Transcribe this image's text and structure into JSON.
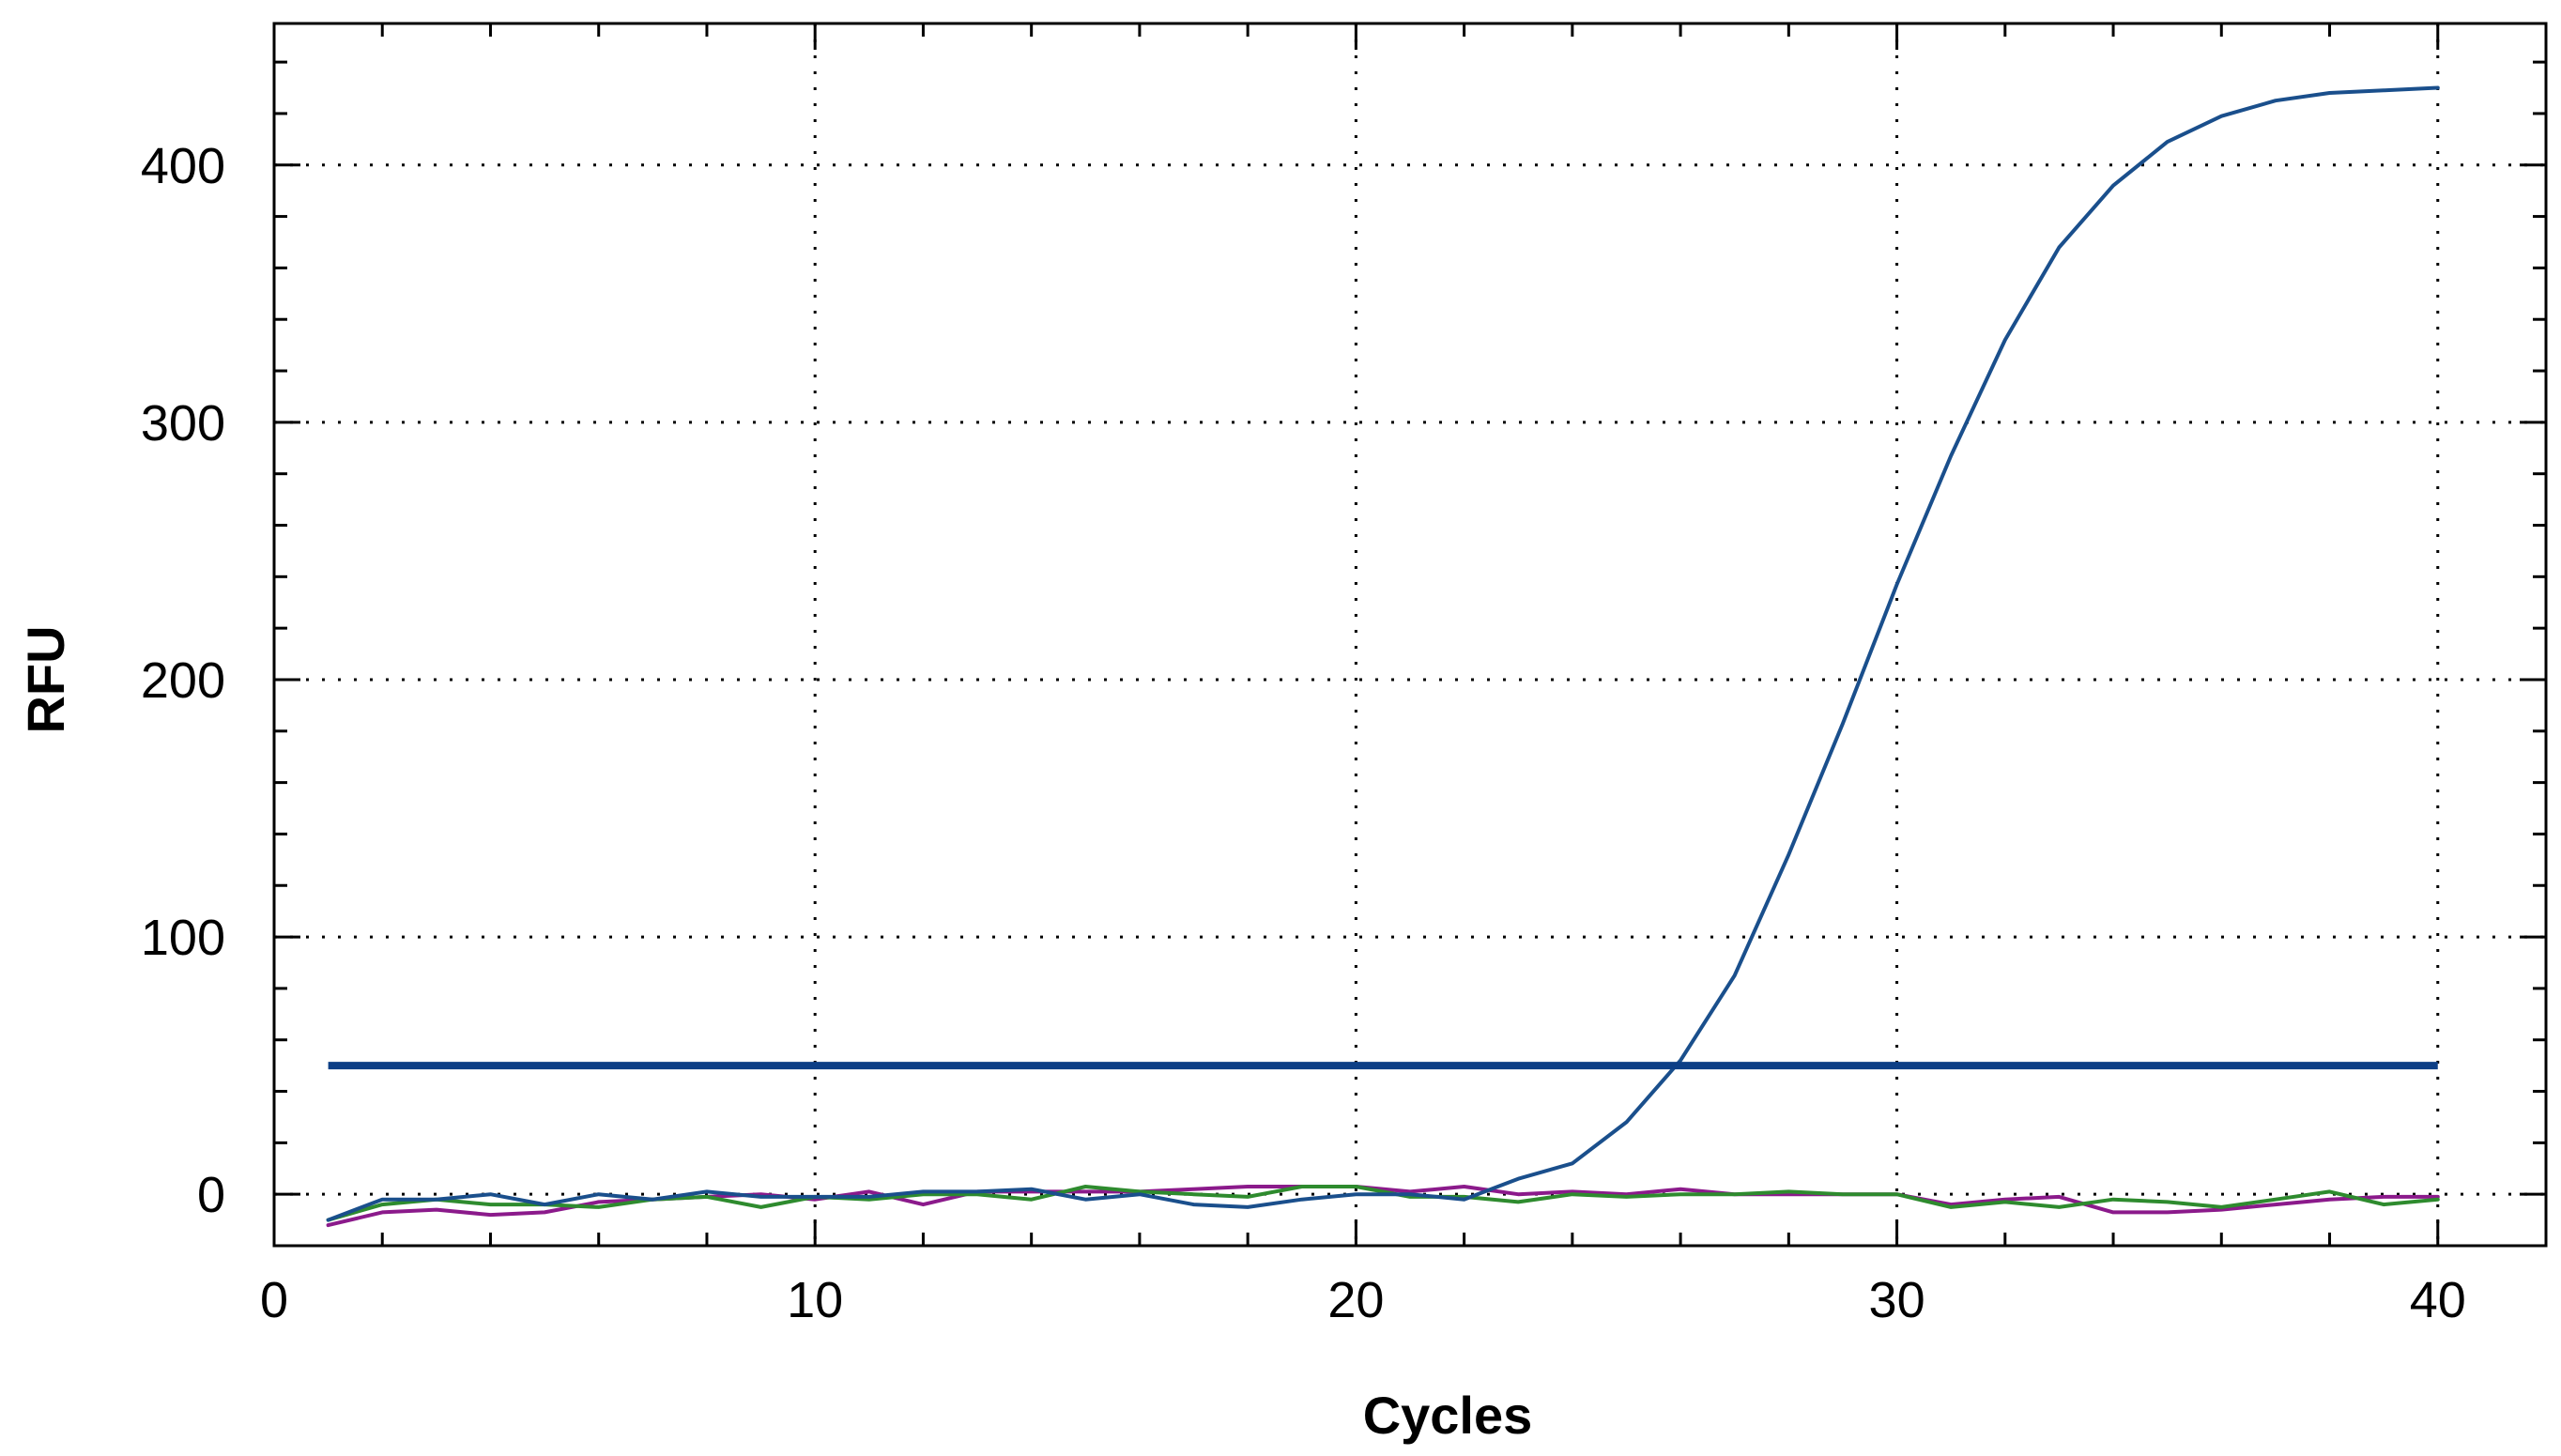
{
  "chart_data": {
    "type": "line",
    "title": "",
    "xlabel": "Cycles",
    "ylabel": "RFU",
    "xlim": [
      0,
      42
    ],
    "ylim": [
      -20,
      455
    ],
    "xticks": [
      0,
      10,
      20,
      30,
      40
    ],
    "yticks": [
      0,
      100,
      200,
      300,
      400
    ],
    "grid": true,
    "grid_style": "dotted",
    "legend": "none",
    "threshold": {
      "value": 50,
      "x_range": [
        1,
        40
      ],
      "color": "#0d3f86"
    },
    "x": [
      1,
      2,
      3,
      4,
      5,
      6,
      7,
      8,
      9,
      10,
      11,
      12,
      13,
      14,
      15,
      16,
      17,
      18,
      19,
      20,
      21,
      22,
      23,
      24,
      25,
      26,
      27,
      28,
      29,
      30,
      31,
      32,
      33,
      34,
      35,
      36,
      37,
      38,
      39,
      40
    ],
    "series": [
      {
        "color": "#1a4f8c",
        "values": [
          -10,
          -2,
          -2,
          0,
          -4,
          0,
          -2,
          1,
          -1,
          -1,
          -1,
          1,
          1,
          2,
          -2,
          0,
          -4,
          -5,
          -2,
          0,
          0,
          -2,
          6,
          12,
          28,
          52,
          85,
          132,
          183,
          237,
          287,
          332,
          368,
          392,
          409,
          419,
          425,
          428,
          429,
          430
        ]
      },
      {
        "color": "#2e8b2e",
        "values": [
          -10,
          -4,
          -2,
          -4,
          -4,
          -5,
          -2,
          -1,
          -5,
          -1,
          -2,
          0,
          0,
          -2,
          3,
          1,
          0,
          -1,
          3,
          3,
          -1,
          -1,
          -3,
          0,
          -1,
          0,
          0,
          1,
          0,
          0,
          -5,
          -3,
          -5,
          -2,
          -3,
          -5,
          -2,
          1,
          -4,
          -2
        ]
      },
      {
        "color": "#8b1a8b",
        "values": [
          -12,
          -7,
          -6,
          -8,
          -7,
          -3,
          -2,
          -1,
          0,
          -2,
          1,
          -4,
          1,
          1,
          1,
          1,
          2,
          3,
          3,
          3,
          1,
          3,
          0,
          1,
          0,
          2,
          0,
          0,
          0,
          0,
          -4,
          -2,
          -1,
          -7,
          -7,
          -6,
          -4,
          -2,
          -1,
          -1
        ]
      }
    ]
  }
}
